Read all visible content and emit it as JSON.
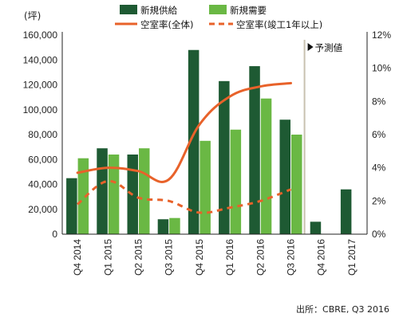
{
  "chart_data": {
    "type": "bar",
    "unit_label": "(坪)",
    "categories": [
      "Q4 2014",
      "Q1 2015",
      "Q2 2015",
      "Q3 2015",
      "Q4 2015",
      "Q1 2016",
      "Q2 2016",
      "Q3 2016",
      "Q4 2016",
      "Q1 2017"
    ],
    "bar_series": [
      {
        "name": "新規供給",
        "color": "#1e5a33",
        "values": [
          45000,
          69000,
          64000,
          12000,
          148000,
          123000,
          135000,
          92000,
          10000,
          36000
        ]
      },
      {
        "name": "新規需要",
        "color": "#6ab844",
        "values": [
          61000,
          64000,
          69000,
          13000,
          75000,
          84000,
          109000,
          80000,
          null,
          null
        ]
      }
    ],
    "line_series": [
      {
        "name": "空室率(全体)",
        "color": "#e8622a",
        "style": "solid",
        "values": [
          3.7,
          4.0,
          3.8,
          3.3,
          6.6,
          8.3,
          8.9,
          9.1,
          null,
          null
        ]
      },
      {
        "name": "空室率(竣工1年以上)",
        "color": "#e8622a",
        "style": "dashed",
        "values": [
          1.8,
          3.2,
          2.2,
          2.0,
          1.3,
          1.6,
          2.0,
          2.7,
          null,
          null
        ]
      }
    ],
    "y_left": {
      "min": 0,
      "max": 160000,
      "ticks": [
        "0",
        "20,000",
        "40,000",
        "60,000",
        "80,000",
        "100,000",
        "120,000",
        "140,000",
        "160,000"
      ]
    },
    "y_right": {
      "min": 0,
      "max": 12,
      "ticks": [
        "0%",
        "2%",
        "4%",
        "6%",
        "8%",
        "10%",
        "12%"
      ]
    },
    "forecast_label": "予測値",
    "forecast_start_index": 8,
    "source": "出所：CBRE, Q3 2016",
    "grid": false,
    "legend_position": "top"
  }
}
